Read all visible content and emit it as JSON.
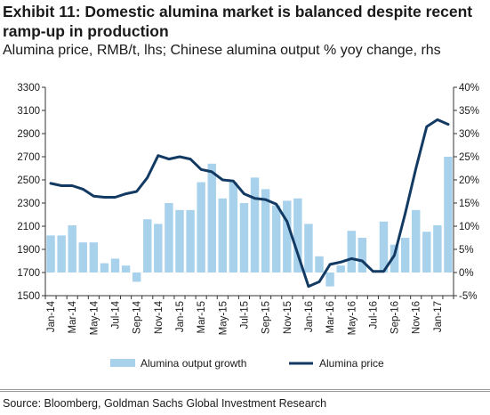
{
  "header": {
    "title": "Exhibit 11: Domestic alumina market is balanced despite recent ramp-up in production",
    "subtitle": "Alumina price, RMB/t, lhs; Chinese alumina output % yoy change, rhs"
  },
  "footer": {
    "source": "Source: Bloomberg, Goldman Sachs Global Investment Research"
  },
  "colors": {
    "bar": "#a8d1ec",
    "line": "#123a63",
    "axis": "#333333",
    "text": "#1a1a1a"
  },
  "chart_data": {
    "type": "bar+line",
    "x": [
      "Jan-14",
      "Feb-14",
      "Mar-14",
      "Apr-14",
      "May-14",
      "Jun-14",
      "Jul-14",
      "Aug-14",
      "Sep-14",
      "Oct-14",
      "Nov-14",
      "Dec-14",
      "Jan-15",
      "Feb-15",
      "Mar-15",
      "Apr-15",
      "May-15",
      "Jun-15",
      "Jul-15",
      "Aug-15",
      "Sep-15",
      "Oct-15",
      "Nov-15",
      "Dec-15",
      "Jan-16",
      "Feb-16",
      "Mar-16",
      "Apr-16",
      "May-16",
      "Jun-16",
      "Jul-16",
      "Aug-16",
      "Sep-16",
      "Oct-16",
      "Nov-16",
      "Dec-16",
      "Jan-17",
      "Feb-17"
    ],
    "x_tick_labels": [
      "Jan-14",
      "Mar-14",
      "May-14",
      "Jul-14",
      "Sep-14",
      "Nov-14",
      "Jan-15",
      "Mar-15",
      "May-15",
      "Jul-15",
      "Sep-15",
      "Nov-15",
      "Jan-16",
      "Mar-16",
      "May-16",
      "Jul-16",
      "Sep-16",
      "Nov-16",
      "Jan-17"
    ],
    "y_left": {
      "min": 1500,
      "max": 3300,
      "ticks": [
        1500,
        1700,
        1900,
        2100,
        2300,
        2500,
        2700,
        2900,
        3100,
        3300
      ],
      "tick_labels": [
        "1500",
        "1700",
        "1900",
        "2100",
        "2300",
        "2500",
        "2700",
        "2900",
        "3100",
        "3300"
      ]
    },
    "y_right": {
      "min": -5,
      "max": 40,
      "ticks": [
        -5,
        0,
        5,
        10,
        15,
        20,
        25,
        30,
        35,
        40
      ],
      "tick_labels": [
        "-5%",
        "0%",
        "5%",
        "10%",
        "15%",
        "20%",
        "25%",
        "30%",
        "35%",
        "40%"
      ]
    },
    "grid": false,
    "legend_position": "bottom",
    "series": [
      {
        "name": "Alumina output growth",
        "kind": "bar",
        "axis": "right",
        "values": [
          8,
          8,
          10.2,
          6.5,
          6.5,
          2,
          3,
          1.5,
          -2,
          11.5,
          10.5,
          15,
          13.5,
          13.5,
          19.5,
          23.5,
          16,
          19.5,
          15,
          20.5,
          18,
          14.5,
          15.5,
          16,
          10.5,
          3.5,
          -3,
          1.5,
          9,
          7.5,
          0,
          11,
          6,
          7.5,
          13.5,
          8.8,
          10.2,
          25
        ]
      },
      {
        "name": "Alumina price",
        "kind": "line",
        "axis": "left",
        "values": [
          2470,
          2450,
          2450,
          2420,
          2360,
          2350,
          2350,
          2380,
          2400,
          2520,
          2710,
          2680,
          2700,
          2680,
          2590,
          2570,
          2500,
          2490,
          2380,
          2340,
          2330,
          2290,
          2140,
          1860,
          1580,
          1620,
          1770,
          1790,
          1820,
          1800,
          1710,
          1710,
          1850,
          2210,
          2600,
          2960,
          3020,
          2980
        ]
      }
    ]
  }
}
